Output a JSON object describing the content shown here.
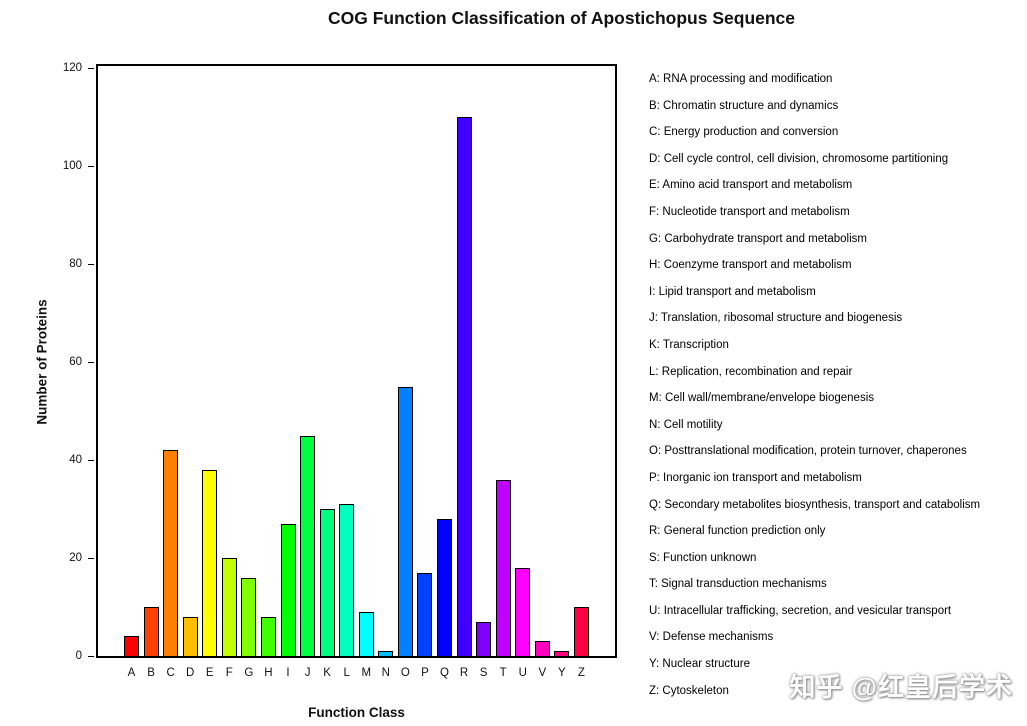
{
  "chart_data": {
    "type": "bar",
    "title": "COG Function Classification of Apostichopus Sequence",
    "xlabel": "Function Class",
    "ylabel": "Number of Proteins",
    "ylim": [
      0,
      120
    ],
    "yticks": [
      0,
      20,
      40,
      60,
      80,
      100,
      120
    ],
    "grid": false,
    "legend_position": "right",
    "categories": [
      "A",
      "B",
      "C",
      "D",
      "E",
      "F",
      "G",
      "H",
      "I",
      "J",
      "K",
      "L",
      "M",
      "N",
      "O",
      "P",
      "Q",
      "R",
      "S",
      "T",
      "U",
      "V",
      "Y",
      "Z"
    ],
    "values": [
      4,
      10,
      42,
      8,
      38,
      20,
      16,
      8,
      27,
      45,
      30,
      31,
      9,
      1,
      55,
      17,
      28,
      110,
      7,
      36,
      18,
      3,
      1,
      10
    ],
    "colors": [
      "#FF0000",
      "#FF4000",
      "#FF8000",
      "#FFBF00",
      "#FFFF00",
      "#BFFF00",
      "#80FF00",
      "#40FF00",
      "#00FF00",
      "#00FF40",
      "#00FF80",
      "#00FFBF",
      "#00FFFF",
      "#00BFFF",
      "#0080FF",
      "#0040FF",
      "#0000FF",
      "#4000FF",
      "#8000FF",
      "#BF00FF",
      "#FF00FF",
      "#FF00BF",
      "#FF0080",
      "#FF0040"
    ]
  },
  "legend": {
    "items": [
      {
        "code": "A",
        "label": "RNA processing and modification"
      },
      {
        "code": "B",
        "label": "Chromatin structure and dynamics"
      },
      {
        "code": "C",
        "label": "Energy production and conversion"
      },
      {
        "code": "D",
        "label": "Cell cycle control, cell division, chromosome partitioning"
      },
      {
        "code": "E",
        "label": "Amino acid transport and metabolism"
      },
      {
        "code": "F",
        "label": "Nucleotide transport and metabolism"
      },
      {
        "code": "G",
        "label": "Carbohydrate transport and metabolism"
      },
      {
        "code": "H",
        "label": "Coenzyme transport and metabolism"
      },
      {
        "code": "I",
        "label": "Lipid transport and metabolism"
      },
      {
        "code": "J",
        "label": "Translation, ribosomal structure and biogenesis"
      },
      {
        "code": "K",
        "label": "Transcription"
      },
      {
        "code": "L",
        "label": "Replication, recombination and repair"
      },
      {
        "code": "M",
        "label": "Cell wall/membrane/envelope biogenesis"
      },
      {
        "code": "N",
        "label": "Cell motility"
      },
      {
        "code": "O",
        "label": "Posttranslational modification, protein turnover, chaperones"
      },
      {
        "code": "P",
        "label": "Inorganic ion transport and metabolism"
      },
      {
        "code": "Q",
        "label": "Secondary metabolites biosynthesis, transport and catabolism"
      },
      {
        "code": "R",
        "label": "General function prediction only"
      },
      {
        "code": "S",
        "label": "Function unknown"
      },
      {
        "code": "T",
        "label": "Signal transduction mechanisms"
      },
      {
        "code": "U",
        "label": "Intracellular trafficking, secretion, and vesicular transport"
      },
      {
        "code": "V",
        "label": "Defense mechanisms"
      },
      {
        "code": "Y",
        "label": "Nuclear structure"
      },
      {
        "code": "Z",
        "label": "Cytoskeleton"
      }
    ]
  },
  "watermark": {
    "text": "知乎 @红皇后学术"
  }
}
